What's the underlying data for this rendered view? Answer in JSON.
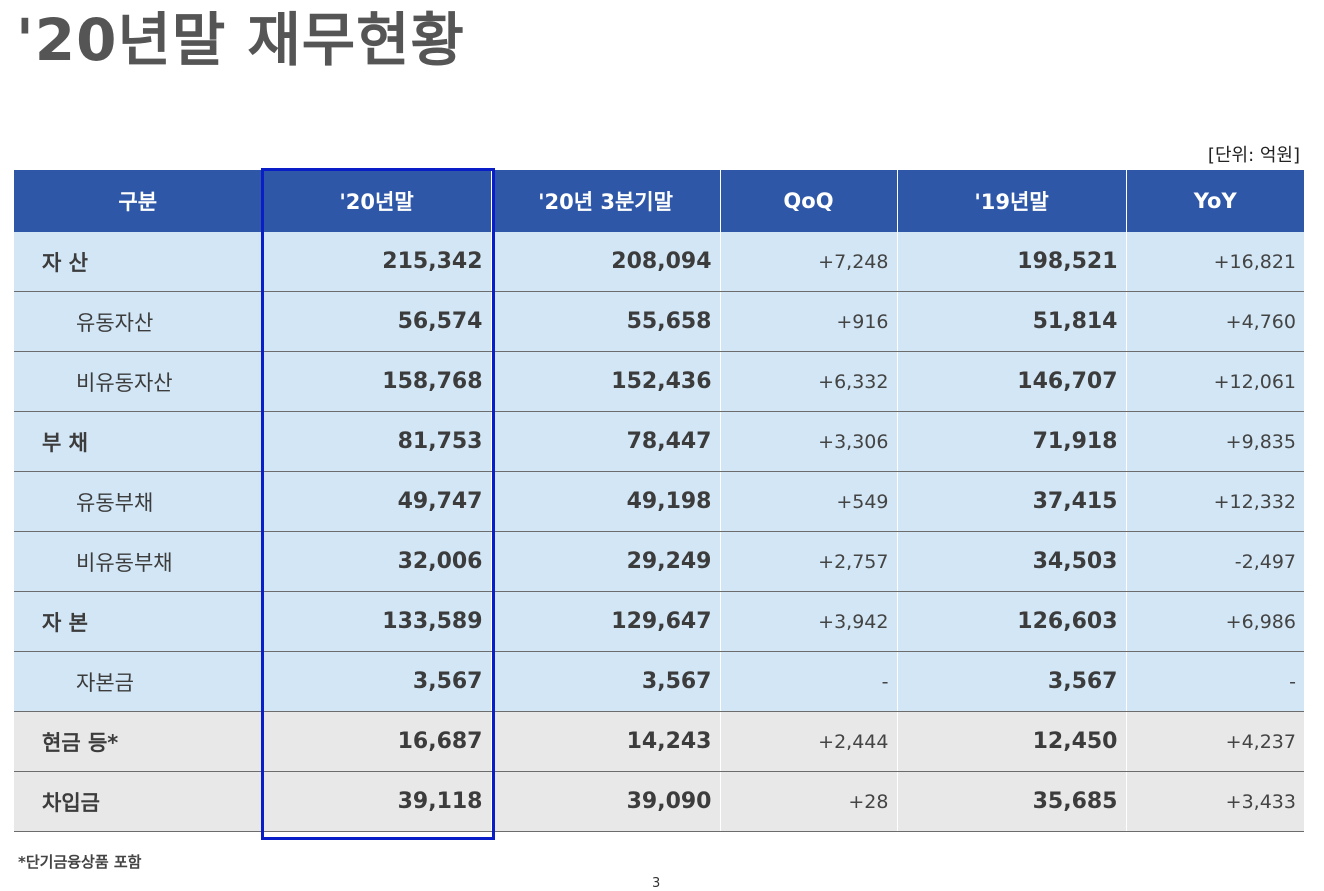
{
  "title": "'20년말 재무현황",
  "unit": "[단위: 억원]",
  "header": {
    "category": "구분",
    "col1": "'20년말",
    "col2": "'20년 3분기말",
    "col3": "QoQ",
    "col4": "'19년말",
    "col5": "YoY"
  },
  "rows": [
    {
      "label": "자  산",
      "v20": "215,342",
      "v20q3": "208,094",
      "qoq": "+7,248",
      "v19": "198,521",
      "yoy": "+16,821"
    },
    {
      "label": "유동자산",
      "v20": "56,574",
      "v20q3": "55,658",
      "qoq": "+916",
      "v19": "51,814",
      "yoy": "+4,760"
    },
    {
      "label": "비유동자산",
      "v20": "158,768",
      "v20q3": "152,436",
      "qoq": "+6,332",
      "v19": "146,707",
      "yoy": "+12,061"
    },
    {
      "label": "부  채",
      "v20": "81,753",
      "v20q3": "78,447",
      "qoq": "+3,306",
      "v19": "71,918",
      "yoy": "+9,835"
    },
    {
      "label": "유동부채",
      "v20": "49,747",
      "v20q3": "49,198",
      "qoq": "+549",
      "v19": "37,415",
      "yoy": "+12,332"
    },
    {
      "label": "비유동부채",
      "v20": "32,006",
      "v20q3": "29,249",
      "qoq": "+2,757",
      "v19": "34,503",
      "yoy": "-2,497"
    },
    {
      "label": "자  본",
      "v20": "133,589",
      "v20q3": "129,647",
      "qoq": "+3,942",
      "v19": "126,603",
      "yoy": "+6,986"
    },
    {
      "label": "자본금",
      "v20": "3,567",
      "v20q3": "3,567",
      "qoq": "-",
      "v19": "3,567",
      "yoy": "-"
    },
    {
      "label": "현금 등*",
      "v20": "16,687",
      "v20q3": "14,243",
      "qoq": "+2,444",
      "v19": "12,450",
      "yoy": "+4,237"
    },
    {
      "label": "차입금",
      "v20": "39,118",
      "v20q3": "39,090",
      "qoq": "+28",
      "v19": "35,685",
      "yoy": "+3,433"
    }
  ],
  "footnote": "*단기금융상품 포함",
  "page_number": "3",
  "colors": {
    "header_bg": "#2e57a8",
    "row_bg": "#d2e6f5",
    "gray_row_bg": "#e8e8e8",
    "highlight_border": "#0a1ec8"
  }
}
